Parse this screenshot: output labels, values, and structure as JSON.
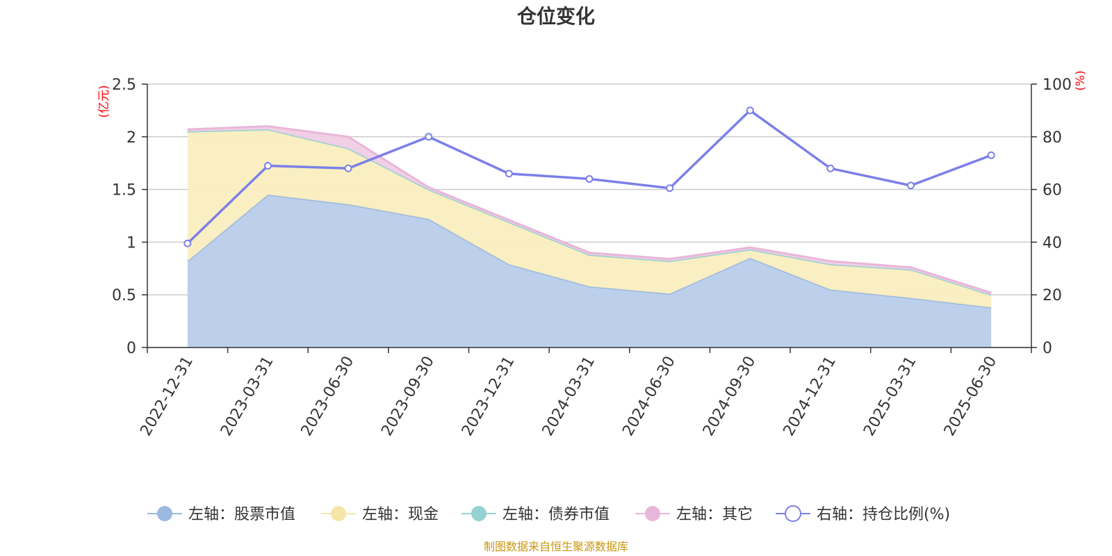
{
  "chart_data": {
    "type": "area",
    "title": "仓位变化",
    "categories": [
      "2022-12-31",
      "2023-03-31",
      "2023-06-30",
      "2023-09-30",
      "2023-12-31",
      "2024-03-31",
      "2024-06-30",
      "2024-09-30",
      "2024-12-31",
      "2025-03-31",
      "2025-06-30"
    ],
    "left_axis": {
      "unit": "(亿元)",
      "ylim": [
        0,
        2.5
      ],
      "ticks": [
        "0",
        "0.5",
        "1",
        "1.5",
        "2",
        "2.5"
      ]
    },
    "right_axis": {
      "unit": "(%)",
      "ylim": [
        0,
        100
      ],
      "ticks": [
        "0",
        "20",
        "40",
        "60",
        "80",
        "100"
      ]
    },
    "series": [
      {
        "name": "左轴：股票市值",
        "axis": "left",
        "stack": true,
        "color": "#9bb8e0",
        "fill": "#b9cdea",
        "values": [
          0.82,
          1.45,
          1.36,
          1.22,
          0.79,
          0.58,
          0.51,
          0.85,
          0.55,
          0.47,
          0.38
        ]
      },
      {
        "name": "左轴：现金",
        "axis": "left",
        "stack": true,
        "color": "#f5e6a8",
        "fill": "#faeebf",
        "values": [
          1.23,
          0.62,
          0.53,
          0.28,
          0.4,
          0.3,
          0.31,
          0.08,
          0.24,
          0.27,
          0.12
        ]
      },
      {
        "name": "左轴：债券市值",
        "axis": "left",
        "stack": true,
        "color": "#96d2d2",
        "fill": "#b7e0e0",
        "values": [
          0,
          0,
          0,
          0,
          0,
          0,
          0,
          0,
          0,
          0,
          0
        ]
      },
      {
        "name": "左轴：其它",
        "axis": "left",
        "stack": true,
        "color": "#e8b6d8",
        "fill": "#f0cde5",
        "values": [
          0.02,
          0.03,
          0.11,
          0.02,
          0.02,
          0.02,
          0.02,
          0.02,
          0.03,
          0.02,
          0.02
        ]
      },
      {
        "name": "右轴：持仓比例(%)",
        "axis": "right",
        "stack": false,
        "color": "#7b7fe8",
        "fill": "none",
        "values": [
          39.5,
          69,
          68,
          80,
          66,
          64,
          60.5,
          90,
          68,
          61.5,
          73
        ]
      }
    ],
    "grid": true,
    "legend_position": "bottom"
  },
  "footer": {
    "source": "制图数据来自恒生聚源数据库"
  }
}
